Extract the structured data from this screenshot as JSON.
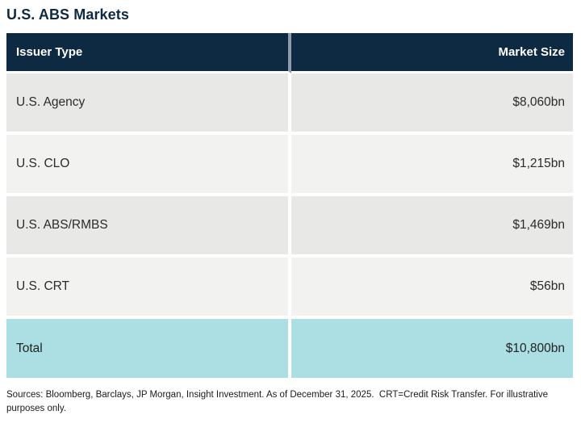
{
  "title": "U.S. ABS Markets",
  "table": {
    "columns": [
      {
        "label": "Issuer Type"
      },
      {
        "label": "Market Size"
      }
    ],
    "rows": [
      {
        "issuer_type": "U.S. Agency",
        "market_size": "$8,060bn"
      },
      {
        "issuer_type": "U.S. CLO",
        "market_size": "$1,215bn"
      },
      {
        "issuer_type": "U.S. ABS/RMBS",
        "market_size": "$1,469bn"
      },
      {
        "issuer_type": "U.S. CRT",
        "market_size": "$56bn"
      }
    ],
    "total_row": {
      "label": "Total",
      "value": "$10,800bn"
    }
  },
  "footnote": "Sources: Bloomberg, Barclays, JP Morgan, Insight Investment. As of December 31, 2025.  CRT=Credit Risk Transfer. For illustrative purposes only.",
  "colors": {
    "navy": "#0d2a42",
    "total_teal": "#abdfe3",
    "row_gray_dark": "#e8e8e7",
    "row_gray_light": "#f2f2f1",
    "header_divider_gray": "#8d9baa",
    "header_text": "#ffffff",
    "body_text": "#2b2b2b"
  },
  "chart_data": {
    "type": "table",
    "title": "U.S. ABS Markets",
    "columns": [
      "Issuer Type",
      "Market Size"
    ],
    "rows": [
      [
        "U.S. Agency",
        "$8,060bn"
      ],
      [
        "U.S. CLO",
        "$1,215bn"
      ],
      [
        "U.S. ABS/RMBS",
        "$1,469bn"
      ],
      [
        "U.S. CRT",
        "$56bn"
      ],
      [
        "Total",
        "$10,800bn"
      ]
    ],
    "values_bn": {
      "U.S. Agency": 8060,
      "U.S. CLO": 1215,
      "U.S. ABS/RMBS": 1469,
      "U.S. CRT": 56,
      "Total": 10800
    },
    "footnote": "Sources: Bloomberg, Barclays, JP Morgan, Insight Investment. As of December 31, 2025.  CRT=Credit Risk Transfer. For illustrative purposes only."
  }
}
